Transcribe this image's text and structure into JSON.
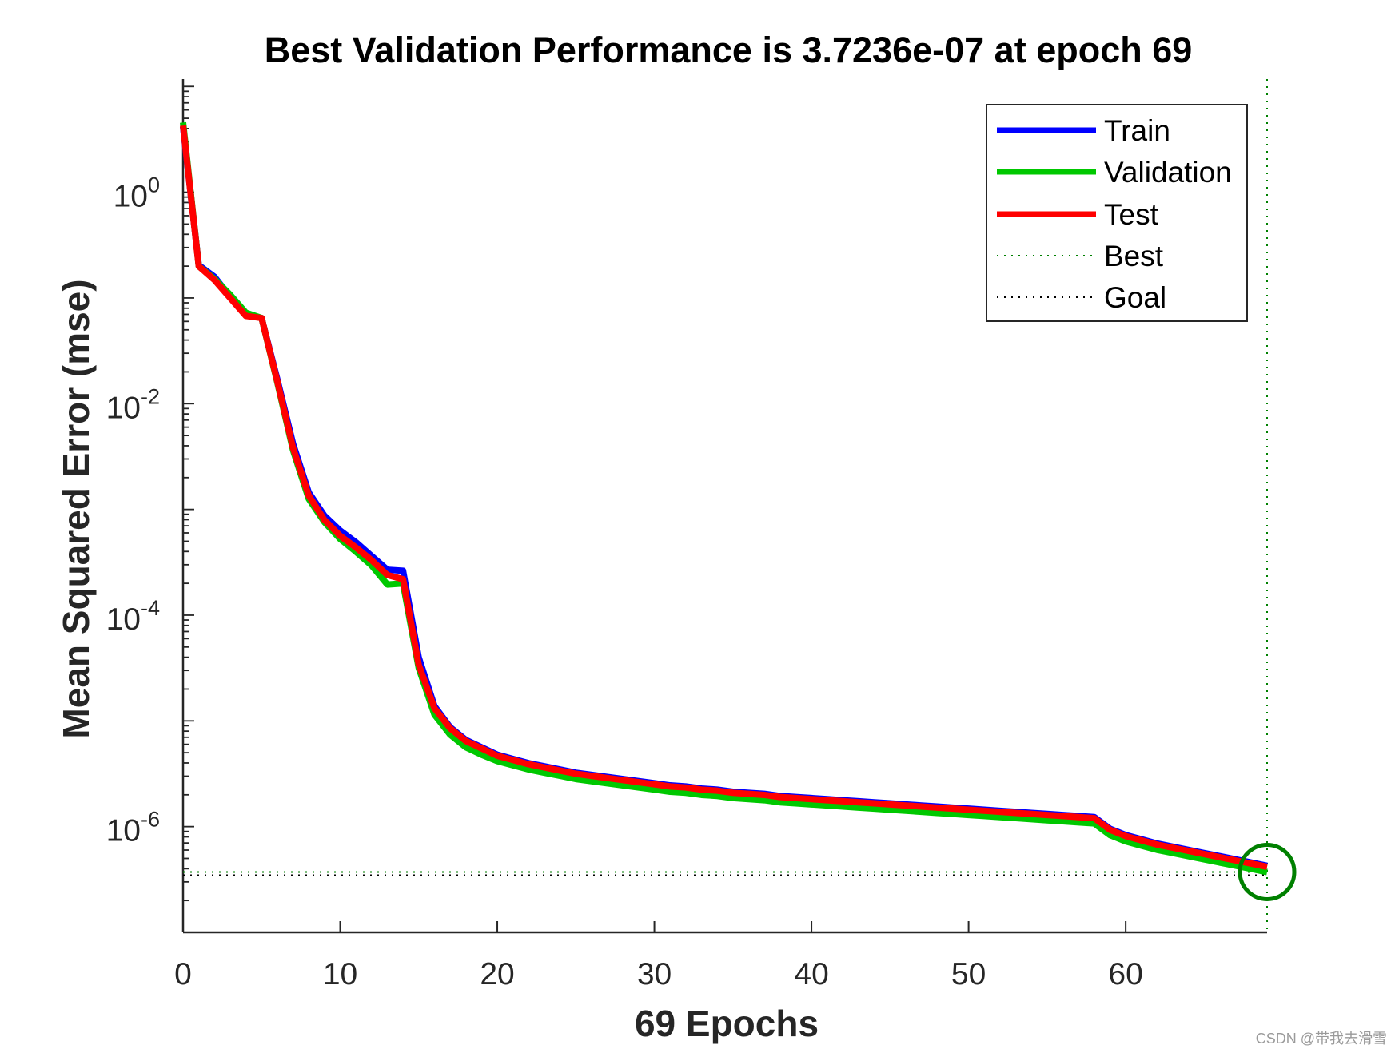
{
  "chart_data": {
    "type": "line",
    "title": "Best Validation Performance is 3.7236e-07 at epoch 69",
    "xlabel": "69 Epochs",
    "ylabel": "Mean Squared Error  (mse)",
    "yscale": "log",
    "xlim": [
      0,
      69
    ],
    "ylim_log10": [
      -7.0,
      1.07
    ],
    "x_ticks": [
      0,
      10,
      20,
      30,
      40,
      50,
      60
    ],
    "x_tick_labels": [
      "0",
      "10",
      "20",
      "30",
      "40",
      "50",
      "60"
    ],
    "y_ticks_log10": [
      0,
      -2,
      -4,
      -6
    ],
    "y_tick_labels": [
      {
        "base": "10",
        "exp": "0"
      },
      {
        "base": "10",
        "exp": "-2"
      },
      {
        "base": "10",
        "exp": "-4"
      },
      {
        "base": "10",
        "exp": "-6"
      }
    ],
    "grid": false,
    "legend_position": "top-right",
    "epochs": [
      0,
      1,
      2,
      3,
      4,
      5,
      6,
      7,
      8,
      9,
      10,
      11,
      12,
      13,
      14,
      15,
      16,
      17,
      18,
      19,
      20,
      21,
      22,
      23,
      24,
      25,
      26,
      27,
      28,
      29,
      30,
      31,
      32,
      33,
      34,
      35,
      36,
      37,
      38,
      39,
      40,
      41,
      42,
      43,
      44,
      45,
      46,
      47,
      48,
      49,
      50,
      51,
      52,
      53,
      54,
      55,
      56,
      57,
      58,
      59,
      60,
      61,
      62,
      63,
      64,
      65,
      66,
      67,
      68,
      69
    ],
    "series": [
      {
        "name": "Train",
        "color": "#0000ff",
        "log10_mse": [
          0.62,
          -0.69,
          -0.8,
          -0.99,
          -1.16,
          -1.19,
          -1.77,
          -2.38,
          -2.84,
          -3.06,
          -3.2,
          -3.31,
          -3.44,
          -3.57,
          -3.58,
          -4.4,
          -4.86,
          -5.06,
          -5.18,
          -5.25,
          -5.32,
          -5.36,
          -5.4,
          -5.43,
          -5.46,
          -5.49,
          -5.51,
          -5.53,
          -5.55,
          -5.57,
          -5.59,
          -5.61,
          -5.62,
          -5.64,
          -5.65,
          -5.67,
          -5.68,
          -5.69,
          -5.71,
          -5.72,
          -5.73,
          -5.74,
          -5.75,
          -5.76,
          -5.77,
          -5.78,
          -5.79,
          -5.8,
          -5.81,
          -5.82,
          -5.83,
          -5.84,
          -5.85,
          -5.86,
          -5.87,
          -5.88,
          -5.89,
          -5.9,
          -5.91,
          -6.02,
          -6.08,
          -6.12,
          -6.16,
          -6.19,
          -6.22,
          -6.25,
          -6.28,
          -6.31,
          -6.34,
          -6.37
        ]
      },
      {
        "name": "Validation",
        "color": "#00c800",
        "log10_mse": [
          0.66,
          -0.7,
          -0.82,
          -0.97,
          -1.14,
          -1.19,
          -1.8,
          -2.44,
          -2.9,
          -3.12,
          -3.28,
          -3.4,
          -3.53,
          -3.71,
          -3.7,
          -4.5,
          -4.94,
          -5.13,
          -5.25,
          -5.32,
          -5.38,
          -5.42,
          -5.46,
          -5.49,
          -5.52,
          -5.55,
          -5.57,
          -5.59,
          -5.61,
          -5.63,
          -5.65,
          -5.67,
          -5.68,
          -5.7,
          -5.71,
          -5.73,
          -5.74,
          -5.75,
          -5.77,
          -5.78,
          -5.79,
          -5.8,
          -5.81,
          -5.82,
          -5.83,
          -5.84,
          -5.85,
          -5.86,
          -5.87,
          -5.88,
          -5.89,
          -5.9,
          -5.91,
          -5.92,
          -5.93,
          -5.94,
          -5.95,
          -5.96,
          -5.97,
          -6.08,
          -6.14,
          -6.18,
          -6.22,
          -6.25,
          -6.28,
          -6.31,
          -6.34,
          -6.37,
          -6.4,
          -6.43
        ]
      },
      {
        "name": "Test",
        "color": "#ff0000",
        "log10_mse": [
          0.63,
          -0.7,
          -0.83,
          -1.0,
          -1.17,
          -1.19,
          -1.79,
          -2.42,
          -2.87,
          -3.1,
          -3.25,
          -3.36,
          -3.48,
          -3.62,
          -3.66,
          -4.47,
          -4.88,
          -5.07,
          -5.19,
          -5.26,
          -5.33,
          -5.37,
          -5.41,
          -5.44,
          -5.47,
          -5.5,
          -5.52,
          -5.54,
          -5.56,
          -5.58,
          -5.6,
          -5.62,
          -5.63,
          -5.65,
          -5.66,
          -5.68,
          -5.69,
          -5.7,
          -5.72,
          -5.73,
          -5.74,
          -5.75,
          -5.76,
          -5.77,
          -5.78,
          -5.79,
          -5.8,
          -5.81,
          -5.82,
          -5.83,
          -5.84,
          -5.85,
          -5.86,
          -5.87,
          -5.88,
          -5.89,
          -5.9,
          -5.91,
          -5.92,
          -6.03,
          -6.09,
          -6.13,
          -6.17,
          -6.2,
          -6.23,
          -6.26,
          -6.29,
          -6.32,
          -6.35,
          -6.38
        ]
      }
    ],
    "best": {
      "name": "Best",
      "color": "#008000",
      "epoch": 69,
      "value": 3.7236e-07
    },
    "goal": {
      "name": "Goal",
      "color": "#000000",
      "log10_mse": -6.46
    }
  },
  "watermark": "CSDN @带我去滑雪"
}
